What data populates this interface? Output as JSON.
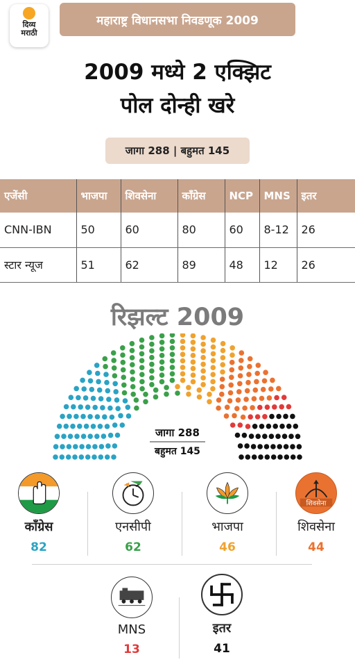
{
  "header": {
    "logo_line1": "दिव्य",
    "logo_line2": "मराठी",
    "kicker": "महाराष्ट्र विधानसभा निवडणूक 2009",
    "headline_line1": "2009 मध्ये 2 एक्झिट",
    "headline_line2": "पोल दोन्ही खरे",
    "seats_badge": "जागा 288 | बहुमत 145"
  },
  "table": {
    "headers": [
      "एजेंसी",
      "भाजपा",
      "शिवसेना",
      "काँग्रेस",
      "NCP",
      "MNS",
      "इतर"
    ],
    "rows": [
      [
        "CNN-IBN",
        "50",
        "60",
        "80",
        "60",
        "8-12",
        "26"
      ],
      [
        "स्टार न्यूज",
        "51",
        "62",
        "89",
        "48",
        "12",
        "26"
      ]
    ]
  },
  "results": {
    "title": "रिझल्ट 2009",
    "center_seats": "जागा 288",
    "center_majority": "बहुमत 145"
  },
  "chart_data": {
    "type": "hemicycle",
    "title": "रिझल्ट 2009",
    "total_seats": 288,
    "majority": 145,
    "series": [
      {
        "name": "काँग्रेस",
        "value": 82,
        "color": "#2aa3c4"
      },
      {
        "name": "एनसीपी",
        "value": 62,
        "color": "#3aa04a"
      },
      {
        "name": "भाजपा",
        "value": 46,
        "color": "#f0a22e"
      },
      {
        "name": "शिवसेना",
        "value": 44,
        "color": "#ea7230"
      },
      {
        "name": "MNS",
        "value": 13,
        "color": "#e23a3a"
      },
      {
        "name": "इतर",
        "value": 41,
        "color": "#111111"
      }
    ]
  },
  "parties": [
    {
      "name": "काँग्रेस",
      "seats": "82",
      "color": "#2aa3c4",
      "icon": "hand-icon"
    },
    {
      "name": "एनसीपी",
      "seats": "62",
      "color": "#3aa04a",
      "icon": "clock-icon"
    },
    {
      "name": "भाजपा",
      "seats": "46",
      "color": "#f0a22e",
      "icon": "lotus-icon"
    },
    {
      "name": "शिवसेना",
      "seats": "44",
      "color": "#ea7230",
      "icon": "bow-arrow-icon",
      "logo_text": "शिवसेना"
    },
    {
      "name": "MNS",
      "seats": "13",
      "color": "#e23a3a",
      "icon": "train-icon"
    },
    {
      "name": "इतर",
      "seats": "41",
      "color": "#111111",
      "icon": "swastika-icon"
    }
  ]
}
